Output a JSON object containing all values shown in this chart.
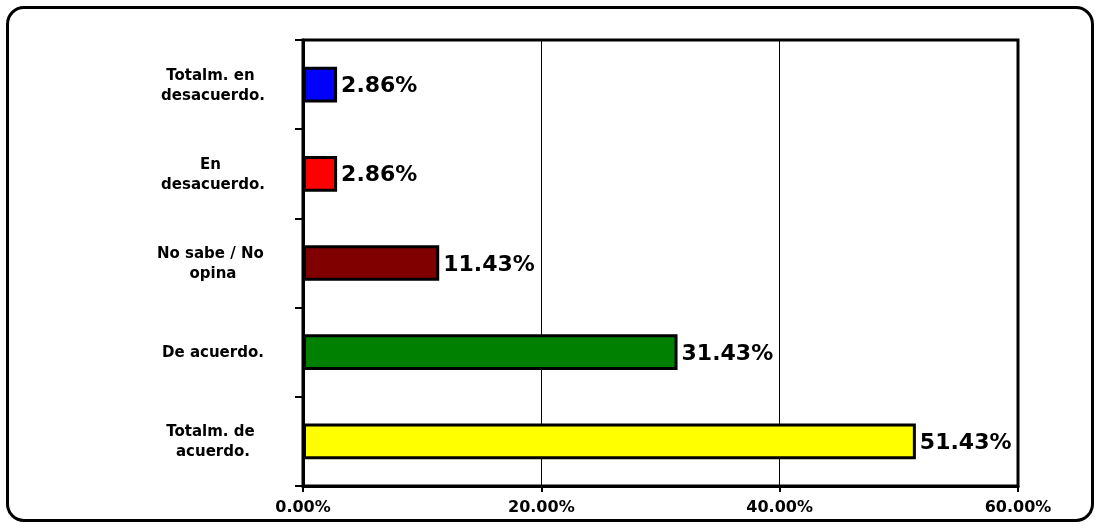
{
  "chart_data": {
    "type": "bar",
    "orientation": "horizontal",
    "categories": [
      "Totalm. en desacuerdo.",
      "En desacuerdo.",
      "No sabe / No opina",
      "De acuerdo.",
      "Totalm. de acuerdo."
    ],
    "values": [
      2.86,
      2.86,
      11.43,
      31.43,
      51.43
    ],
    "colors": [
      "#0000ff",
      "#ff0000",
      "#800000",
      "#008000",
      "#ffff00"
    ],
    "value_labels": [
      "2.86%",
      "2.86%",
      "11.43%",
      "31.43%",
      "51.43%"
    ],
    "xlim": [
      0,
      60
    ],
    "xticks": [
      {
        "value": 0,
        "label": "0.00%"
      },
      {
        "value": 20,
        "label": "20.00%"
      },
      {
        "value": 40,
        "label": "40.00%"
      },
      {
        "value": 60,
        "label": "60.00%"
      }
    ],
    "grid": "x"
  }
}
